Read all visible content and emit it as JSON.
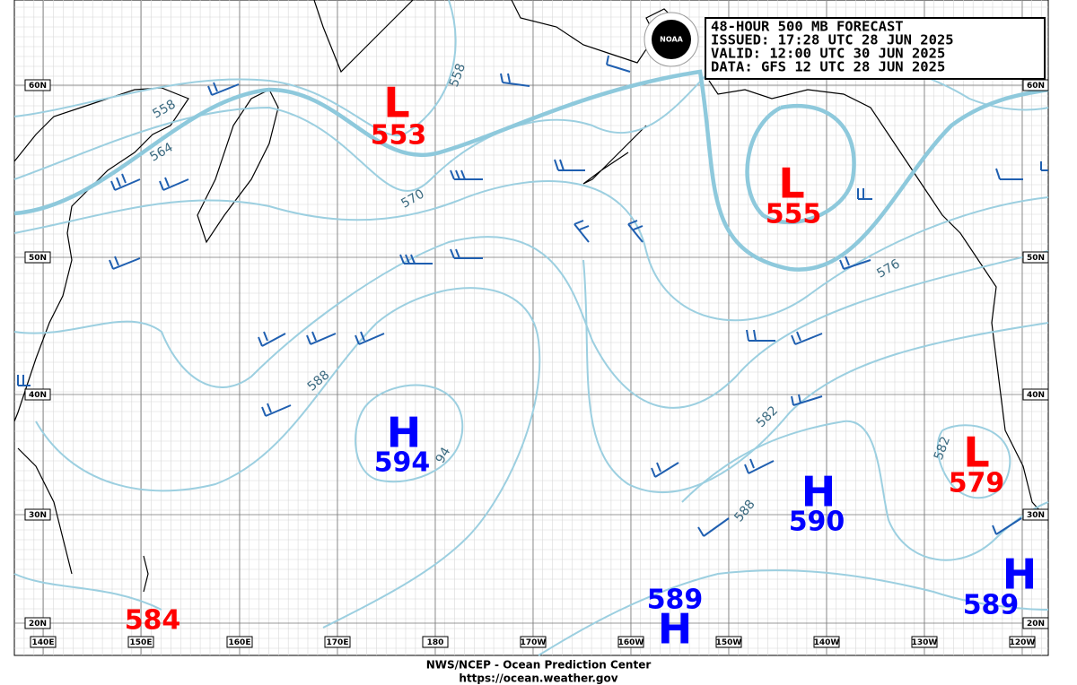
{
  "logo": "NOAA",
  "header": {
    "lines": [
      "48-HOUR 500 MB FORECAST",
      "ISSUED: 17:28 UTC 28 JUN 2025",
      "VALID:  12:00 UTC 30 JUN 2025",
      "DATA:  GFS 12 UTC 28 JUN 2025"
    ]
  },
  "systems": [
    {
      "letter": "L",
      "value": 553
    },
    {
      "letter": "L",
      "value": 555
    },
    {
      "letter": "H",
      "value": 594
    },
    {
      "letter": "H",
      "value": 590
    },
    {
      "letter": "L",
      "value": 579
    },
    {
      "letter": "H",
      "value": 589
    },
    {
      "letter": "H",
      "value": 589
    }
  ],
  "other_values": [
    584
  ],
  "contour_labels": [
    558,
    558,
    564,
    570,
    576,
    582,
    582,
    588,
    588,
    94
  ],
  "latitudes": [
    "60N",
    "50N",
    "40N",
    "30N",
    "20N"
  ],
  "longitudes": [
    "140E",
    "150E",
    "160E",
    "170E",
    "180",
    "170W",
    "160W",
    "150W",
    "140W",
    "130W",
    "120W"
  ],
  "footer": [
    "NWS/NCEP - Ocean Prediction Center",
    "https://ocean.weather.gov"
  ]
}
